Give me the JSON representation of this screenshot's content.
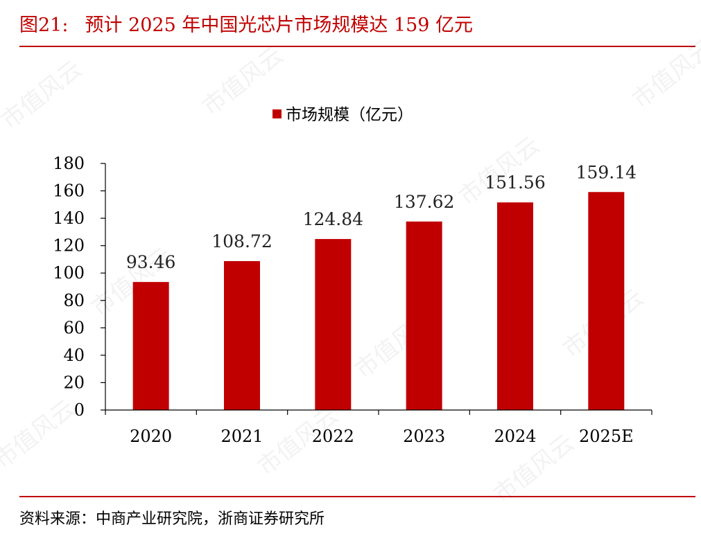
{
  "figure": {
    "number": "图21:",
    "title": "预计 2025 年中国光芯片市场规模达 159 亿元",
    "source": "资料来源：中商产业研究院，浙商证券研究所",
    "watermark": "市值风云"
  },
  "colors": {
    "accent": "#c00000",
    "bar": "#c00000"
  },
  "chart_data": {
    "type": "bar",
    "categories": [
      "2020",
      "2021",
      "2022",
      "2023",
      "2024",
      "2025E"
    ],
    "series": [
      {
        "name": "市场规模（亿元）",
        "values": [
          93.46,
          108.72,
          124.84,
          137.62,
          151.56,
          159.14
        ]
      }
    ],
    "data_labels": [
      "93.46",
      "108.72",
      "124.84",
      "137.62",
      "151.56",
      "159.14"
    ],
    "ylim": [
      0,
      180
    ],
    "yticks": [
      0,
      20,
      40,
      60,
      80,
      100,
      120,
      140,
      160,
      180
    ],
    "grid": false,
    "legend_position": "top-center"
  }
}
